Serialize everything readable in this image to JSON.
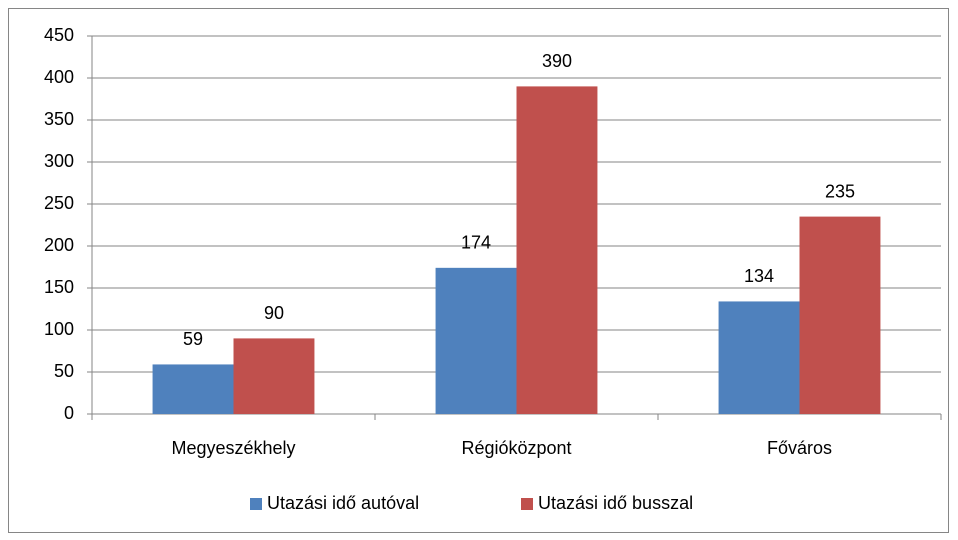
{
  "chart_data": {
    "type": "bar",
    "categories": [
      "Megyeszékhely",
      "Régióközpont",
      "Főváros"
    ],
    "series": [
      {
        "name": "Utazási idő autóval",
        "color": "#4f81bd",
        "values": [
          59,
          174,
          134
        ]
      },
      {
        "name": "Utazási idő busszal",
        "color": "#c0504d",
        "values": [
          90,
          390,
          235
        ]
      }
    ],
    "ylim": [
      0,
      450
    ],
    "yticks": [
      0,
      50,
      100,
      150,
      200,
      250,
      300,
      350,
      400,
      450
    ],
    "grid": true,
    "legend": "bottom"
  }
}
